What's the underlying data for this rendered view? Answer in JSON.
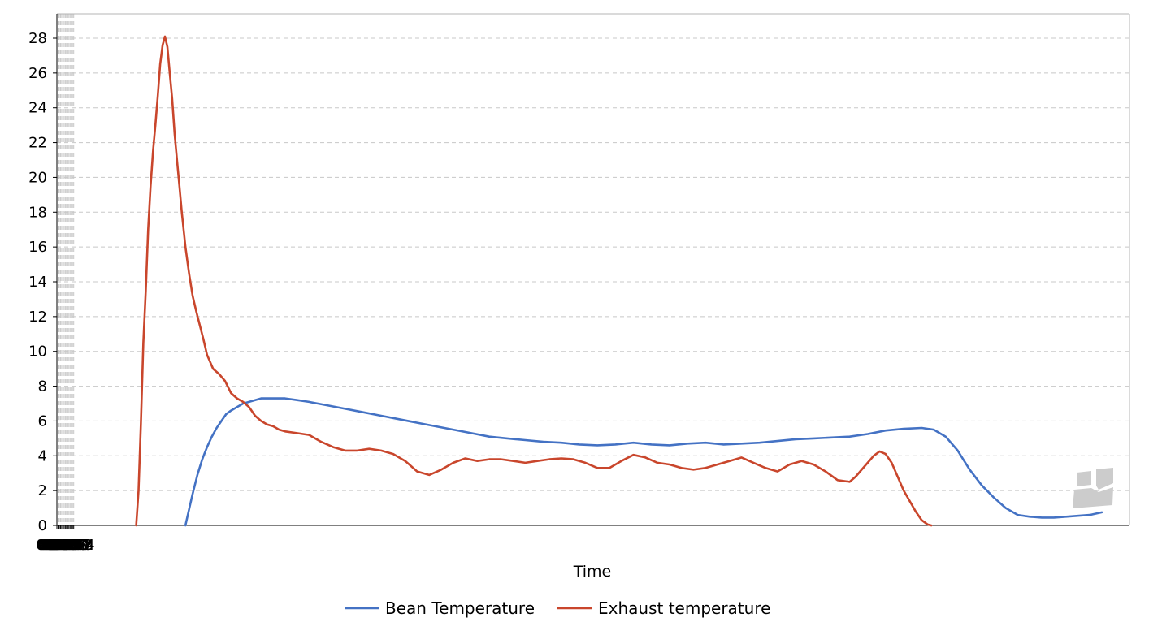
{
  "chart_data": {
    "type": "line",
    "title": "",
    "xlabel": "Time",
    "ylabel": "",
    "x_unit": "mm:ss",
    "xlim": [
      "00:00",
      "00:14:53"
    ],
    "ylim": [
      0,
      28
    ],
    "x_ticks": [
      "00:00",
      "00:01",
      "00:02",
      "00:03",
      "00:04",
      "00:05",
      "00:06",
      "00:07",
      "00:08",
      "00:09",
      "00:10",
      "00:11",
      "00:12",
      "00:13",
      "00:14"
    ],
    "y_ticks": [
      0,
      2,
      4,
      6,
      8,
      10,
      12,
      14,
      16,
      18,
      20,
      22,
      24,
      26,
      28
    ],
    "grid": true,
    "legend_position": "bottom",
    "series": [
      {
        "name": "Bean Temperature",
        "color": "#4472c4",
        "x": [
          "01:47",
          "01:49",
          "01:53",
          "01:57",
          "02:01",
          "02:05",
          "02:09",
          "02:13",
          "02:17",
          "02:21",
          "02:25",
          "02:30",
          "02:35",
          "02:40",
          "02:45",
          "02:50",
          "02:55",
          "03:00",
          "03:10",
          "03:20",
          "03:30",
          "03:45",
          "04:00",
          "04:15",
          "04:30",
          "04:45",
          "05:00",
          "05:15",
          "05:30",
          "05:45",
          "06:00",
          "06:15",
          "06:30",
          "06:45",
          "07:00",
          "07:15",
          "07:30",
          "07:45",
          "08:00",
          "08:15",
          "08:30",
          "08:45",
          "09:00",
          "09:15",
          "09:30",
          "09:45",
          "10:00",
          "10:15",
          "10:30",
          "10:45",
          "11:00",
          "11:15",
          "11:30",
          "11:45",
          "12:00",
          "12:10",
          "12:20",
          "12:30",
          "12:40",
          "12:50",
          "13:00",
          "13:10",
          "13:20",
          "13:30",
          "13:40",
          "13:50",
          "14:00",
          "14:10",
          "14:20",
          "14:30"
        ],
        "values": [
          0,
          0.6,
          1.8,
          2.9,
          3.8,
          4.5,
          5.1,
          5.6,
          6.0,
          6.4,
          6.6,
          6.8,
          7.0,
          7.1,
          7.2,
          7.3,
          7.3,
          7.3,
          7.3,
          7.2,
          7.1,
          6.9,
          6.7,
          6.5,
          6.3,
          6.1,
          5.9,
          5.7,
          5.5,
          5.3,
          5.1,
          5.0,
          4.9,
          4.8,
          4.75,
          4.65,
          4.6,
          4.65,
          4.75,
          4.65,
          4.6,
          4.7,
          4.75,
          4.65,
          4.7,
          4.75,
          4.85,
          4.95,
          5.0,
          5.05,
          5.1,
          5.25,
          5.45,
          5.55,
          5.6,
          5.5,
          5.1,
          4.3,
          3.2,
          2.3,
          1.6,
          1.0,
          0.6,
          0.5,
          0.45,
          0.45,
          0.5,
          0.55,
          0.6,
          0.75
        ]
      },
      {
        "name": "Exhaust temperature",
        "color": "#c9462c",
        "x": [
          "01:06",
          "01:08",
          "01:10",
          "01:12",
          "01:14",
          "01:16",
          "01:18",
          "01:20",
          "01:22",
          "01:24",
          "01:26",
          "01:28",
          "01:30",
          "01:32",
          "01:34",
          "01:36",
          "01:38",
          "01:40",
          "01:42",
          "01:44",
          "01:47",
          "01:50",
          "01:53",
          "01:56",
          "01:59",
          "02:02",
          "02:05",
          "02:10",
          "02:15",
          "02:20",
          "02:25",
          "02:30",
          "02:35",
          "02:40",
          "02:45",
          "02:50",
          "02:55",
          "03:00",
          "03:05",
          "03:10",
          "03:20",
          "03:30",
          "03:40",
          "03:50",
          "04:00",
          "04:10",
          "04:20",
          "04:30",
          "04:40",
          "04:50",
          "05:00",
          "05:10",
          "05:20",
          "05:30",
          "05:40",
          "05:50",
          "06:00",
          "06:10",
          "06:20",
          "06:30",
          "06:40",
          "06:50",
          "07:00",
          "07:10",
          "07:20",
          "07:30",
          "07:40",
          "07:50",
          "08:00",
          "08:10",
          "08:20",
          "08:30",
          "08:40",
          "08:50",
          "09:00",
          "09:10",
          "09:20",
          "09:30",
          "09:40",
          "09:50",
          "10:00",
          "10:10",
          "10:20",
          "10:30",
          "10:40",
          "10:50",
          "11:00",
          "11:05",
          "11:10",
          "11:15",
          "11:20",
          "11:25",
          "11:30",
          "11:35",
          "11:40",
          "11:45",
          "11:50",
          "11:55",
          "12:00",
          "12:05",
          "12:08"
        ],
        "values": [
          0,
          2.0,
          6.0,
          10.5,
          13.5,
          17.0,
          19.5,
          21.5,
          23.0,
          24.7,
          26.5,
          27.6,
          28.1,
          27.5,
          26.0,
          24.5,
          22.5,
          21.0,
          19.5,
          18.0,
          16.0,
          14.5,
          13.2,
          12.3,
          11.5,
          10.7,
          9.8,
          9.0,
          8.7,
          8.3,
          7.6,
          7.3,
          7.1,
          6.8,
          6.3,
          6.0,
          5.8,
          5.7,
          5.5,
          5.4,
          5.3,
          5.2,
          4.8,
          4.5,
          4.3,
          4.3,
          4.4,
          4.3,
          4.1,
          3.7,
          3.1,
          2.9,
          3.2,
          3.6,
          3.85,
          3.7,
          3.8,
          3.8,
          3.7,
          3.6,
          3.7,
          3.8,
          3.85,
          3.8,
          3.6,
          3.3,
          3.3,
          3.7,
          4.05,
          3.9,
          3.6,
          3.5,
          3.3,
          3.2,
          3.3,
          3.5,
          3.7,
          3.9,
          3.6,
          3.3,
          3.1,
          3.5,
          3.7,
          3.5,
          3.1,
          2.6,
          2.5,
          2.8,
          3.2,
          3.6,
          4.0,
          4.25,
          4.1,
          3.6,
          2.8,
          2.0,
          1.4,
          0.8,
          0.3,
          0.05,
          0
        ]
      }
    ]
  }
}
